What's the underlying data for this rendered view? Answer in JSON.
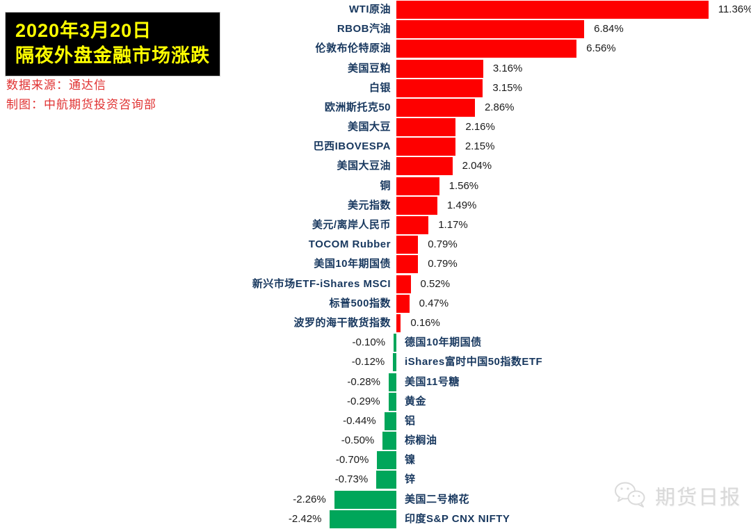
{
  "header": {
    "title_line1": "2020年3月20日",
    "title_line2": "隔夜外盘金融市场涨跌",
    "source": "数据来源：通达信",
    "credit": "制图：中航期货投资咨询部"
  },
  "watermark": {
    "text": "期货日报",
    "icon": "wechat-icon"
  },
  "colors": {
    "positive_bar": "#fe0000",
    "negative_bar": "#00a65a",
    "category_text": "#17375e",
    "value_text": "#1a1a1a",
    "title_bg": "#000000",
    "title_text": "#ffff00",
    "source_text": "#e03131",
    "watermark_text": "#d9d9d9"
  },
  "chart_data": {
    "type": "bar",
    "orientation": "horizontal",
    "title": "2020年3月20日隔夜外盘金融市场涨跌",
    "unit": "%",
    "xlabel": "",
    "ylabel": "",
    "xlim": [
      -2.42,
      11.36
    ],
    "grid": false,
    "legend": "none",
    "sort": "descending",
    "categories": [
      "WTI原油",
      "RBOB汽油",
      "伦敦布伦特原油",
      "美国豆粕",
      "白银",
      "欧洲斯托克50",
      "美国大豆",
      "巴西IBOVESPA",
      "美国大豆油",
      "铜",
      "美元指数",
      "美元/离岸人民币",
      "TOCOM Rubber",
      "美国10年期国债",
      "新兴市场ETF-iShares MSCI",
      "标普500指数",
      "波罗的海干散货指数",
      "德国10年期国债",
      "iShares富时中国50指数ETF",
      "美国11号糖",
      "黄金",
      "铝",
      "棕榈油",
      "镍",
      "锌",
      "美国二号棉花",
      "印度S&P CNX NIFTY"
    ],
    "values": [
      11.36,
      6.84,
      6.56,
      3.16,
      3.15,
      2.86,
      2.16,
      2.15,
      2.04,
      1.56,
      1.49,
      1.17,
      0.79,
      0.79,
      0.52,
      0.47,
      0.16,
      -0.1,
      -0.12,
      -0.28,
      -0.29,
      -0.44,
      -0.5,
      -0.7,
      -0.73,
      -2.26,
      -2.42
    ],
    "labels": [
      "11.36%",
      "6.84%",
      "6.56%",
      "3.16%",
      "3.15%",
      "2.86%",
      "2.16%",
      "2.15%",
      "2.04%",
      "1.56%",
      "1.49%",
      "1.17%",
      "0.79%",
      "0.79%",
      "0.52%",
      "0.47%",
      "0.16%",
      "-0.10%",
      "-0.12%",
      "-0.28%",
      "-0.29%",
      "-0.44%",
      "-0.50%",
      "-0.70%",
      "-0.73%",
      "-2.26%",
      "-2.42%"
    ]
  }
}
